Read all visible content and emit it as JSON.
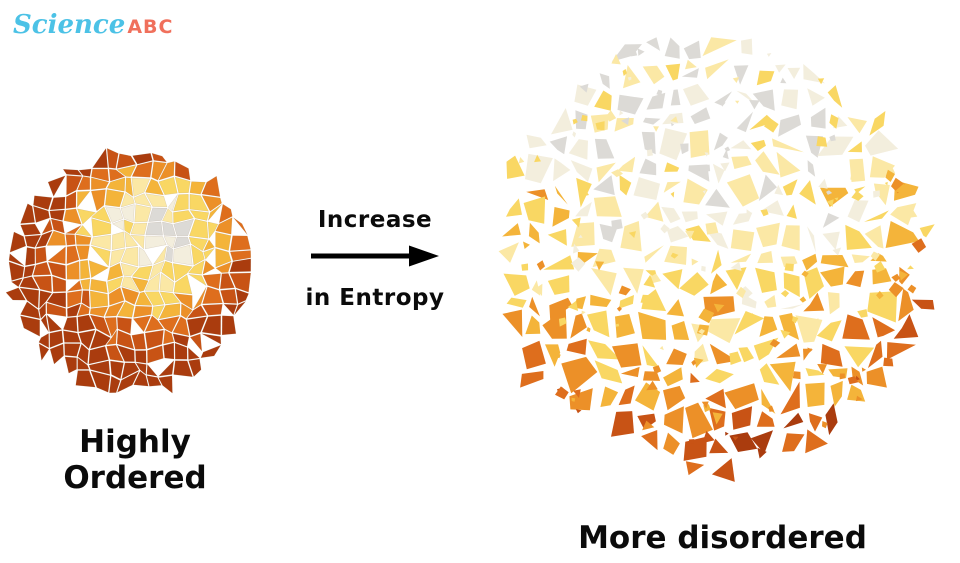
{
  "logo": {
    "science": "Science",
    "abc": "ABC"
  },
  "arrow": {
    "top_label": "Increase",
    "bottom_label": "in Entropy"
  },
  "captions": {
    "left_line1": "Highly",
    "left_line2": "Ordered",
    "right": "More disordered"
  },
  "colors": {
    "background": "#ffffff",
    "text": "#0b0b0b",
    "arrow": "#000000",
    "logo_science": "#4cc2e6",
    "logo_abc": "#f0705c",
    "mosaic_palette": [
      "#dcdad6",
      "#f3eedd",
      "#fbe8a5",
      "#f9d763",
      "#f4b43a",
      "#ec9028",
      "#de6e1d",
      "#c85315",
      "#aa3c0e"
    ]
  }
}
